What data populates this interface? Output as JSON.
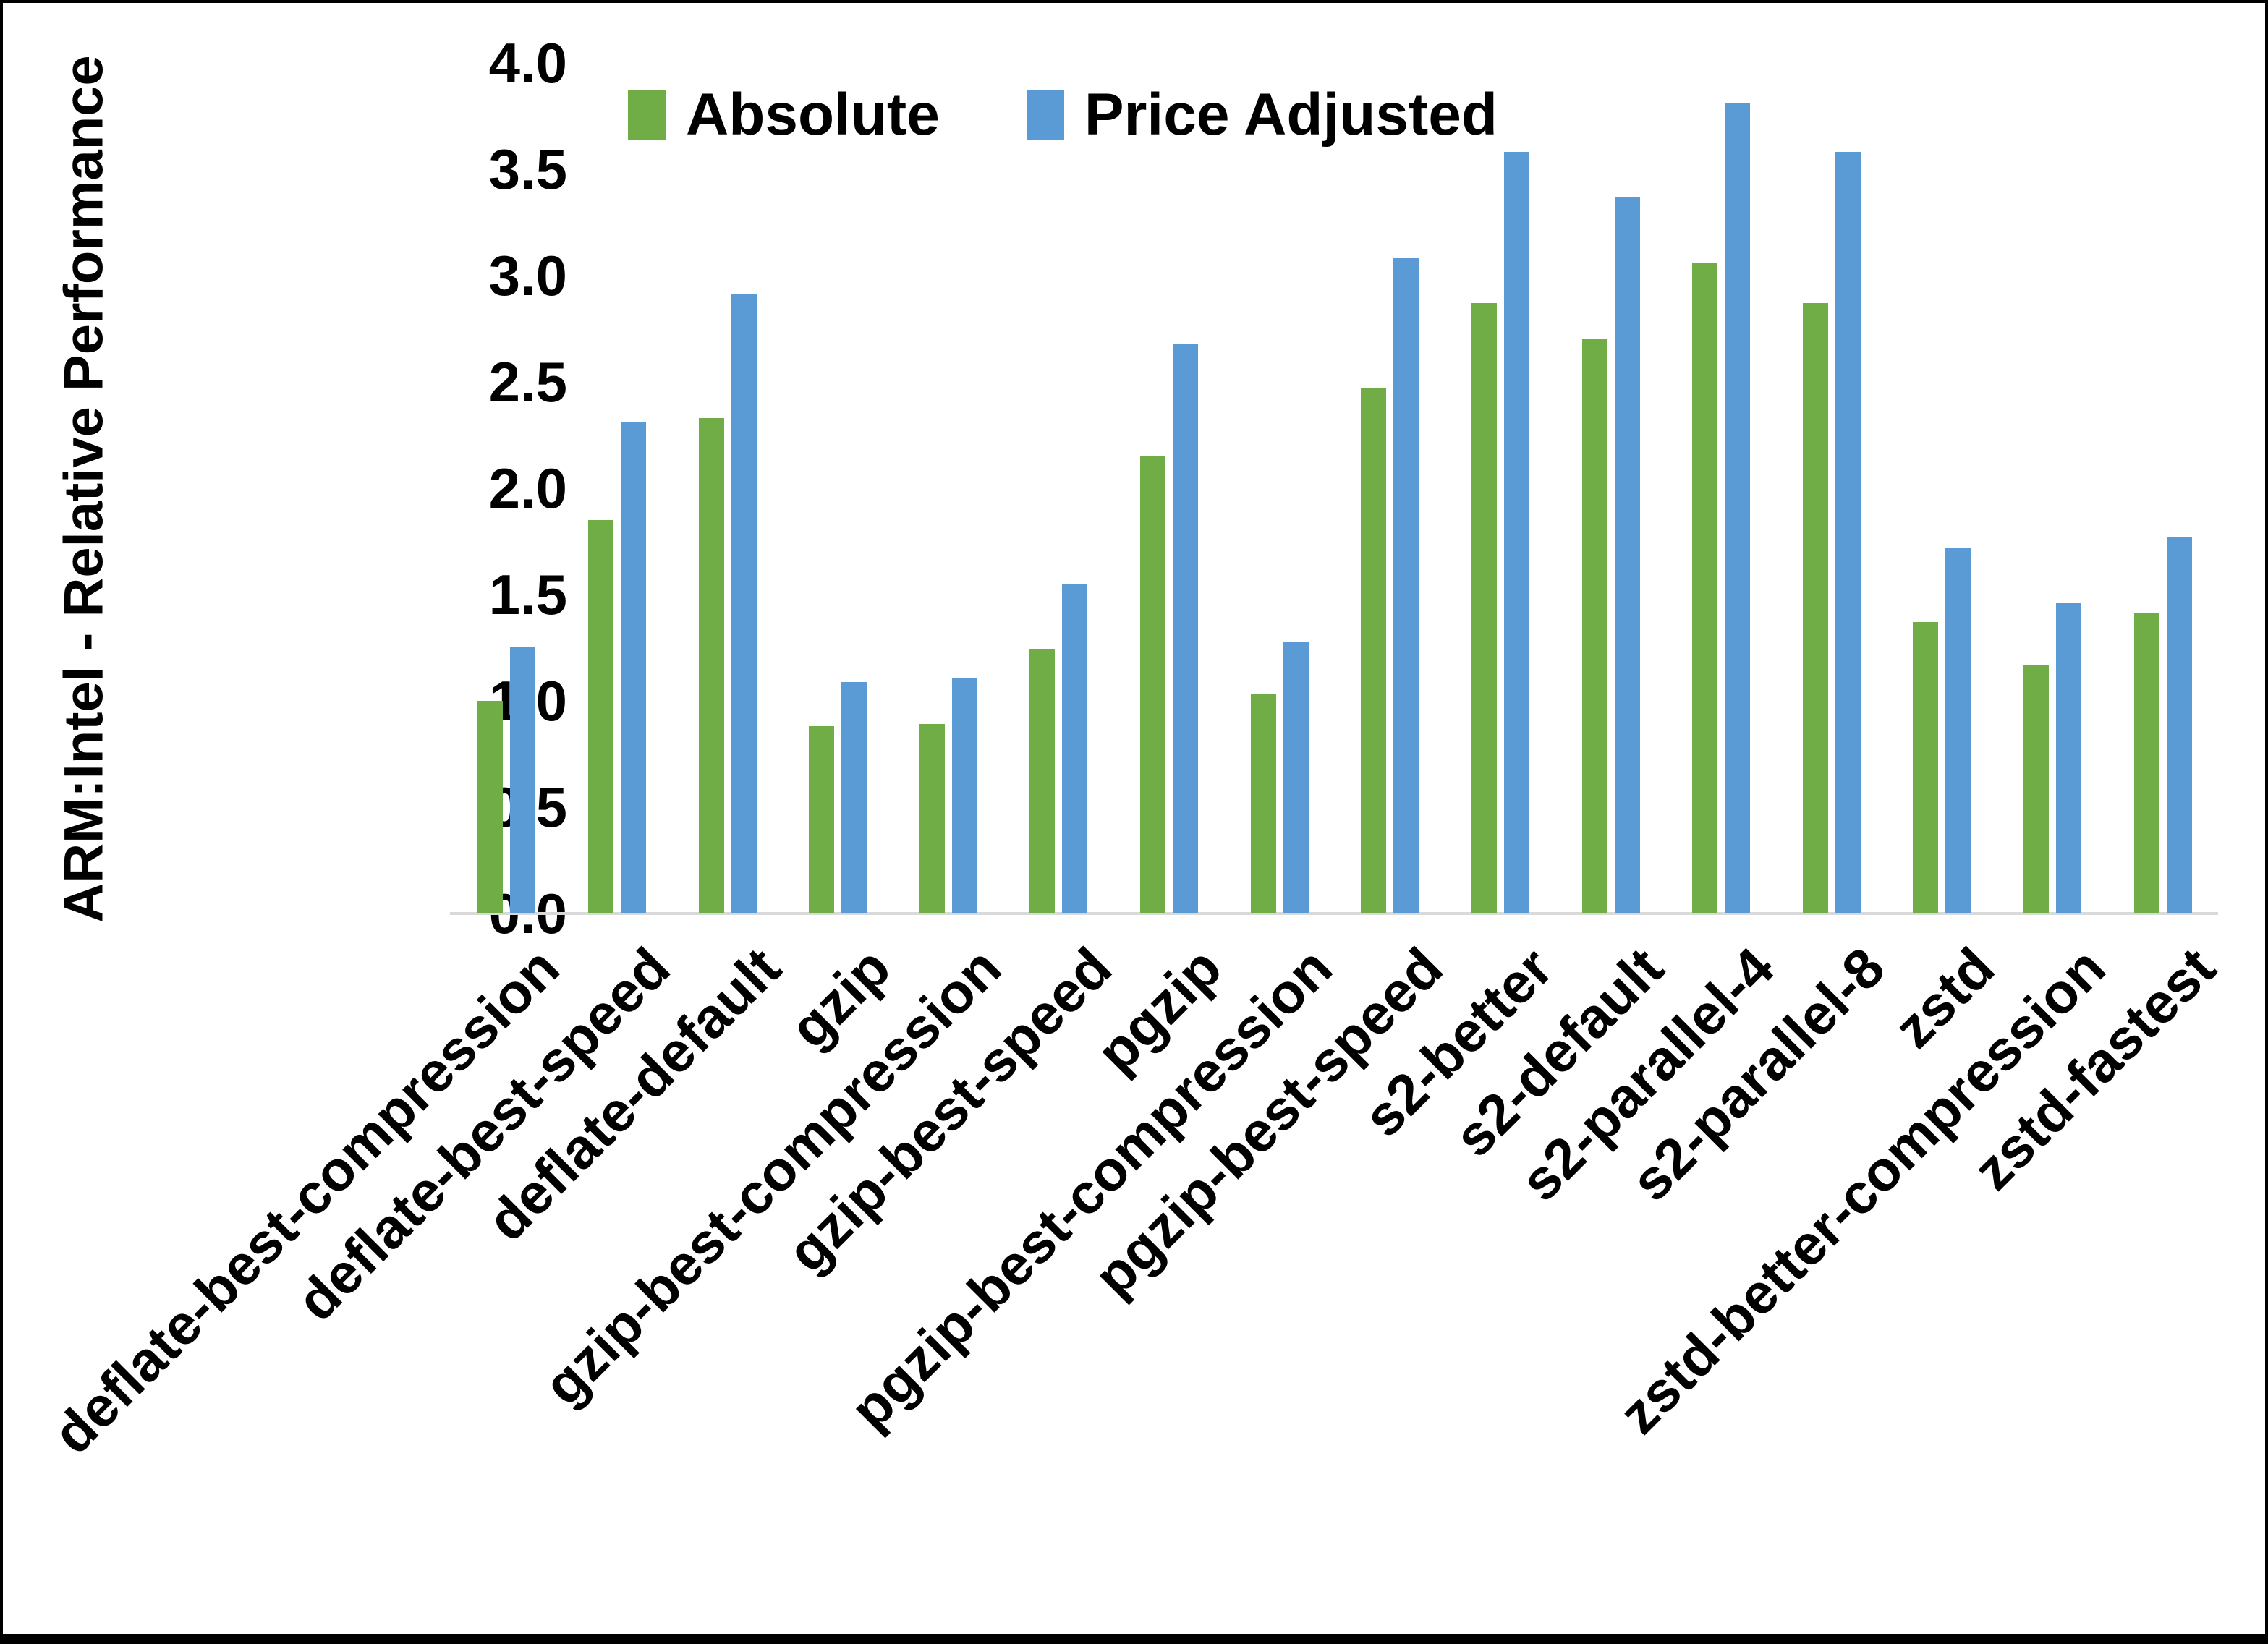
{
  "page": {
    "background": "#ffffff",
    "frame_color": "#000000"
  },
  "chart_data": {
    "type": "bar",
    "title": "",
    "ylabel": "ARM:Intel - Relative Performance",
    "xlabel": "",
    "ylim": [
      0.0,
      4.0
    ],
    "ytick_step": 0.5,
    "ytick_labels": [
      "4.0",
      "3.5",
      "3.0",
      "2.5",
      "2.0",
      "1.5",
      "1.0",
      "0.5",
      "0.0"
    ],
    "grid": false,
    "legend_position": "top-center",
    "axis_line_color": "#d9d9d9",
    "text_color": "#000000",
    "categories": [
      "deflate-best-compression",
      "deflate-best-speed",
      "deflate-default",
      "gzip",
      "gzip-best-compression",
      "gzip-best-speed",
      "pgzip",
      "pgzip-best-compression",
      "pgzip-best-speed",
      "s2-better",
      "s2-default",
      "s2-parallel-4",
      "s2-parallel-8",
      "zstd",
      "zstd-better-compression",
      "zstd-fastest"
    ],
    "series": [
      {
        "name": "Absolute",
        "color": "#70AD47",
        "values": [
          1.0,
          1.85,
          2.33,
          0.88,
          0.89,
          1.24,
          2.15,
          1.03,
          2.47,
          2.87,
          2.7,
          3.06,
          2.87,
          1.37,
          1.17,
          1.41
        ]
      },
      {
        "name": "Price Adjusted",
        "color": "#5B9BD5",
        "values": [
          1.25,
          2.31,
          2.91,
          1.09,
          1.11,
          1.55,
          2.68,
          1.28,
          3.08,
          3.58,
          3.37,
          3.81,
          3.58,
          1.72,
          1.46,
          1.77
        ]
      }
    ]
  }
}
